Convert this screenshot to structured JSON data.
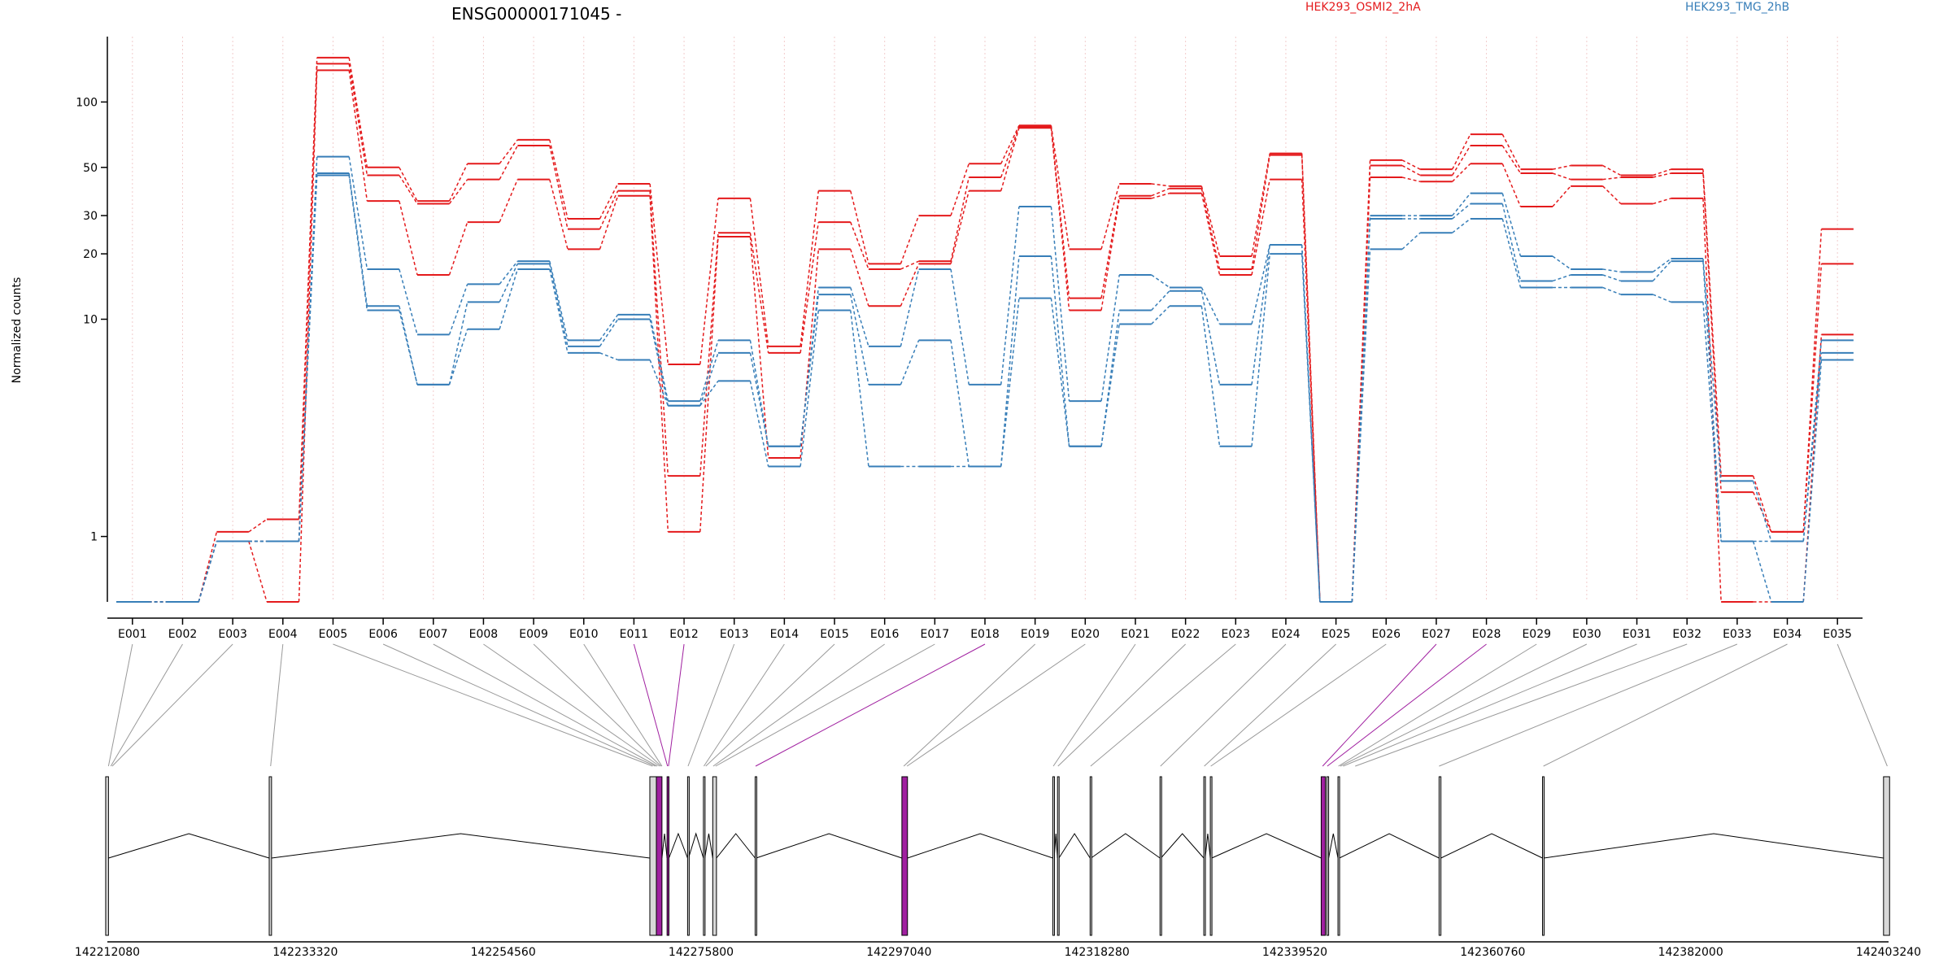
{
  "title": "ENSG00000171045 -",
  "legend": [
    {
      "label": "HEK293_OSMI2_2hA",
      "color": "#e41a1c"
    },
    {
      "label": "HEK293_TMG_2hB",
      "color": "#377eb8"
    }
  ],
  "colors": {
    "treatment": "#e41a1c",
    "control": "#377eb8",
    "highlight": "#a020a0",
    "connector": "#999999",
    "gene_line": "#000000"
  },
  "chart_data": {
    "type": "line",
    "title": "ENSG00000171045 -",
    "ylabel": "Normalized counts",
    "yscale": "log",
    "ylim": [
      0.5,
      200
    ],
    "yticks": [
      1,
      10,
      20,
      30,
      50,
      100
    ],
    "grid": "vertical dotted lines at exon positions",
    "legend_placement": "top",
    "categories": [
      "E001",
      "E002",
      "E003",
      "E004",
      "E005",
      "E006",
      "E007",
      "E008",
      "E009",
      "E010",
      "E011",
      "E012",
      "E013",
      "E014",
      "E015",
      "E016",
      "E017",
      "E018",
      "E019",
      "E020",
      "E021",
      "E022",
      "E023",
      "E024",
      "E025",
      "E026",
      "E027",
      "E028",
      "E029",
      "E030",
      "E031",
      "E032",
      "E033",
      "E034",
      "E035"
    ],
    "highlighted_exons": [
      "E011",
      "E012",
      "E018",
      "E027",
      "E028"
    ],
    "series": [
      {
        "name": "HEK293_OSMI2_2hA",
        "group": "treatment",
        "values": [
          0.5,
          0.5,
          1.05,
          1.2,
          160,
          50,
          35,
          52,
          67,
          29,
          42,
          6.2,
          36,
          7.5,
          39,
          18,
          30,
          52,
          78,
          21,
          42,
          41,
          19.5,
          58,
          0.5,
          54,
          49,
          71,
          49,
          51,
          46,
          49,
          1.9,
          1.05,
          26
        ]
      },
      {
        "name": "HEK293_OSMI2_2hA",
        "group": "treatment",
        "values": [
          0.5,
          0.5,
          0.95,
          0.95,
          150,
          46,
          34,
          44,
          63,
          26,
          39,
          1.9,
          25,
          7,
          28,
          17,
          18.5,
          45,
          77,
          12.5,
          37,
          40,
          17,
          57,
          0.5,
          51,
          46,
          63,
          47,
          44,
          45,
          47,
          1.6,
          1.05,
          18
        ]
      },
      {
        "name": "HEK293_OSMI2_2hA",
        "group": "treatment",
        "values": [
          0.5,
          0.5,
          0.95,
          0.5,
          140,
          35,
          16,
          28,
          44,
          21,
          37,
          1.05,
          24,
          2.3,
          21,
          11.5,
          18,
          39,
          76,
          11,
          36,
          38,
          16,
          44,
          0.5,
          45,
          43,
          52,
          33,
          41,
          34,
          36,
          0.5,
          0.5,
          8.5
        ]
      },
      {
        "name": "HEK293_TMG_2hB",
        "group": "control",
        "values": [
          0.5,
          0.5,
          0.95,
          0.95,
          56,
          17,
          8.5,
          14.5,
          18.5,
          8,
          10.5,
          4.2,
          8,
          2.6,
          14,
          7.5,
          17,
          5,
          33,
          4.2,
          16,
          14,
          9.5,
          22,
          0.5,
          30,
          30,
          38,
          19.5,
          17,
          16.5,
          19,
          1.8,
          0.95,
          8
        ]
      },
      {
        "name": "HEK293_TMG_2hB",
        "group": "control",
        "values": [
          0.5,
          0.5,
          0.95,
          0.95,
          47,
          11.5,
          5,
          12,
          18,
          7.5,
          10,
          4,
          7,
          2.6,
          13,
          5,
          8,
          2.1,
          19.5,
          2.6,
          11,
          13.5,
          5,
          22,
          0.5,
          29,
          29,
          34,
          15,
          16,
          15,
          18.5,
          0.95,
          0.95,
          7
        ]
      },
      {
        "name": "HEK293_TMG_2hB",
        "group": "control",
        "values": [
          0.5,
          0.5,
          0.95,
          0.95,
          46,
          11,
          5,
          9,
          17,
          7,
          6.5,
          4,
          5.2,
          2.1,
          11,
          2.1,
          2.1,
          2.1,
          12.5,
          2.6,
          9.5,
          11.5,
          2.6,
          20,
          0.5,
          21,
          25,
          29,
          14,
          14,
          13,
          12,
          0.95,
          0.5,
          6.5
        ]
      }
    ],
    "gene_model": {
      "xlim": [
        142212080,
        142403240
      ],
      "xticks": [
        142212080,
        142233320,
        142254560,
        142275800,
        142297040,
        142318280,
        142339520,
        142360760,
        142382000,
        142403240
      ],
      "exon_genomic": [
        142212200,
        142212450,
        142212600,
        142229600,
        142270600,
        142270900,
        142271100,
        142271350,
        142271500,
        142271600,
        142272200,
        142272300,
        142274400,
        142276100,
        142276300,
        142277100,
        142277350,
        142281650,
        142297550,
        142297900,
        142313600,
        142314100,
        142317600,
        142325100,
        142329800,
        142330500,
        142342500,
        142343000,
        142344200,
        142344400,
        142344700,
        142346000,
        142355000,
        142366200,
        142403100
      ],
      "bands": [
        {
          "start": 142211900,
          "end": 142212200,
          "highlight": false
        },
        {
          "start": 142229450,
          "end": 142229700,
          "highlight": false
        },
        {
          "start": 142270300,
          "end": 142271000,
          "highlight": false
        },
        {
          "start": 142271000,
          "end": 142271600,
          "highlight": true
        },
        {
          "start": 142272150,
          "end": 142272350,
          "highlight": true
        },
        {
          "start": 142274350,
          "end": 142274450,
          "highlight": false
        },
        {
          "start": 142276050,
          "end": 142276200,
          "highlight": false
        },
        {
          "start": 142277050,
          "end": 142277450,
          "highlight": false
        },
        {
          "start": 142281600,
          "end": 142281700,
          "highlight": false
        },
        {
          "start": 142297350,
          "end": 142297950,
          "highlight": true
        },
        {
          "start": 142313550,
          "end": 142313700,
          "highlight": false
        },
        {
          "start": 142314050,
          "end": 142314200,
          "highlight": false
        },
        {
          "start": 142317550,
          "end": 142317650,
          "highlight": false
        },
        {
          "start": 142325050,
          "end": 142325150,
          "highlight": false
        },
        {
          "start": 142329750,
          "end": 142329900,
          "highlight": false
        },
        {
          "start": 142330450,
          "end": 142330600,
          "highlight": false
        },
        {
          "start": 142342350,
          "end": 142342800,
          "highlight": true
        },
        {
          "start": 142342950,
          "end": 142343150,
          "highlight": false
        },
        {
          "start": 142344150,
          "end": 142344300,
          "highlight": false
        },
        {
          "start": 142355000,
          "end": 142355200,
          "highlight": false
        },
        {
          "start": 142366100,
          "end": 142366250,
          "highlight": false
        },
        {
          "start": 142402700,
          "end": 142403350,
          "highlight": false
        }
      ]
    }
  }
}
